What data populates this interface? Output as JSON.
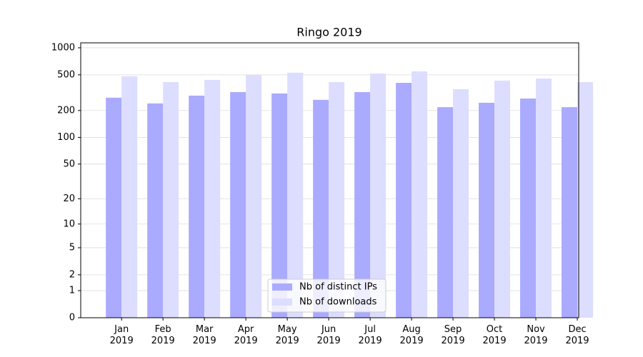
{
  "chart_data": {
    "type": "bar",
    "title": "Ringo 2019",
    "scale": "log1p",
    "categories": [
      "Jan 2019",
      "Feb 2019",
      "Mar 2019",
      "Apr 2019",
      "May 2019",
      "Jun 2019",
      "Jul 2019",
      "Aug 2019",
      "Sep 2019",
      "Oct 2019",
      "Nov 2019",
      "Dec 2019"
    ],
    "series": [
      {
        "name": "Nb of distinct IPs",
        "color": "#aaaaff",
        "values": [
          278,
          240,
          293,
          321,
          310,
          263,
          321,
          407,
          218,
          244,
          272,
          218
        ]
      },
      {
        "name": "Nb of downloads",
        "color": "#ddddff",
        "values": [
          481,
          415,
          439,
          498,
          527,
          415,
          517,
          547,
          346,
          431,
          455,
          415
        ]
      }
    ],
    "ylim": [
      0,
      1135
    ],
    "yticks": [
      0,
      1,
      2,
      5,
      10,
      20,
      50,
      100,
      200,
      500,
      1000
    ],
    "grid": true,
    "legend": "lower center"
  }
}
